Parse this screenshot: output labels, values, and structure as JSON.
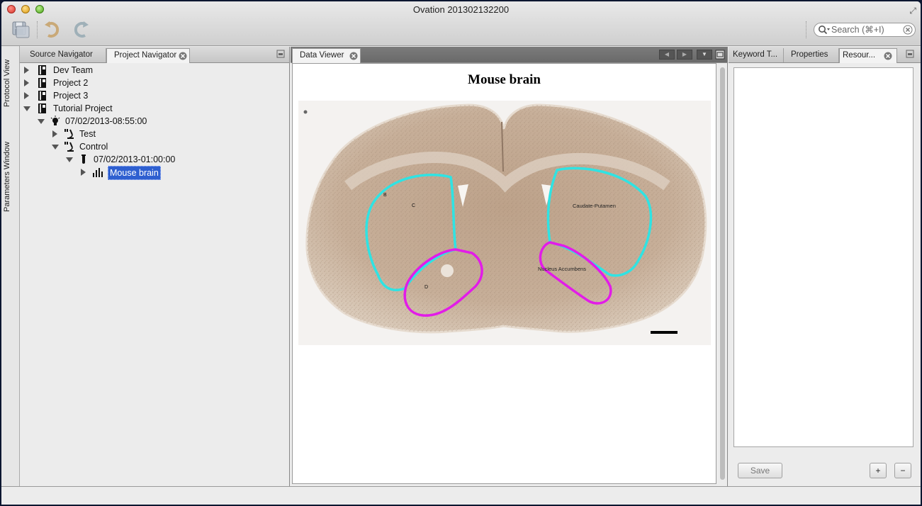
{
  "window": {
    "title": "Ovation 201302132200"
  },
  "search": {
    "placeholder": "Search (⌘+I)"
  },
  "side_tabs": {
    "protocol": "Protocol View",
    "parameters": "Parameters Window"
  },
  "navigator": {
    "tabs": [
      {
        "label": "Source Navigator"
      },
      {
        "label": "Project Navigator"
      }
    ],
    "tree": [
      {
        "label": "Dev Team"
      },
      {
        "label": "Project 2"
      },
      {
        "label": "Project 3"
      },
      {
        "label": "Tutorial Project"
      },
      {
        "label": "07/02/2013-08:55:00"
      },
      {
        "label": "Test"
      },
      {
        "label": "Control"
      },
      {
        "label": "07/02/2013-01:00:00"
      },
      {
        "label": "Mouse brain"
      }
    ]
  },
  "viewer": {
    "tab_label": "Data Viewer",
    "figure_title": "Mouse brain",
    "annotations": {
      "caudate": "Caudate-Putamen",
      "accumbens": "Nucleus Accumbens",
      "label_b": "B",
      "label_c": "C",
      "label_d": "D"
    },
    "colors": {
      "striatum_outline": "#2fe3e3",
      "accumbens_outline": "#e21ce8",
      "tissue": "#c3aa93"
    }
  },
  "right_panel": {
    "tabs": [
      {
        "label": "Keyword T..."
      },
      {
        "label": "Properties"
      },
      {
        "label": "Resour..."
      }
    ],
    "save_label": "Save",
    "plus_label": "+",
    "minus_label": "−"
  }
}
